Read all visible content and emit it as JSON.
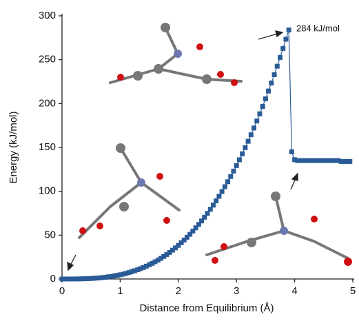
{
  "chart_data": {
    "type": "scatter",
    "x_label": "Distance from Equilibrium (Å)",
    "y_label": "Energy (kJ/mol)",
    "annotation": "284 kJ/mol",
    "xlim": [
      0,
      5
    ],
    "xticks": [
      0,
      1,
      2,
      3,
      4,
      5
    ],
    "ylim": [
      0,
      300
    ],
    "yticks": [
      0,
      50,
      100,
      150,
      200,
      250,
      300
    ],
    "x": [
      0,
      0.05,
      0.1,
      0.15,
      0.2,
      0.25,
      0.3,
      0.35,
      0.4,
      0.45,
      0.5,
      0.55,
      0.6,
      0.65,
      0.7,
      0.75,
      0.8,
      0.85,
      0.9,
      0.95,
      1.0,
      1.05,
      1.1,
      1.15,
      1.2,
      1.25,
      1.3,
      1.35,
      1.4,
      1.45,
      1.5,
      1.55,
      1.6,
      1.65,
      1.7,
      1.75,
      1.8,
      1.85,
      1.9,
      1.95,
      2.0,
      2.05,
      2.1,
      2.15,
      2.2,
      2.25,
      2.3,
      2.35,
      2.4,
      2.45,
      2.5,
      2.55,
      2.6,
      2.65,
      2.7,
      2.75,
      2.8,
      2.85,
      2.9,
      2.95,
      3.0,
      3.05,
      3.1,
      3.15,
      3.2,
      3.25,
      3.3,
      3.35,
      3.4,
      3.45,
      3.5,
      3.55,
      3.6,
      3.65,
      3.7,
      3.75,
      3.8,
      3.85,
      3.9,
      3.95,
      4.0,
      4.05,
      4.1,
      4.15,
      4.2,
      4.25,
      4.3,
      4.35,
      4.4,
      4.45,
      4.5,
      4.55,
      4.6,
      4.65,
      4.7,
      4.75,
      4.8,
      4.85,
      4.9,
      4.95
    ],
    "series": [
      {
        "color": "#2a5b97",
        "values": [
          0,
          0,
          0,
          0,
          0.04,
          0.07,
          0.13,
          0.21,
          0.31,
          0.44,
          0.6,
          0.8,
          1.0,
          1.3,
          1.6,
          2.0,
          2.5,
          2.9,
          3.5,
          4.1,
          4.8,
          5.5,
          6.4,
          7.3,
          8.3,
          9.4,
          10.5,
          11.8,
          13.1,
          14.6,
          16.2,
          17.8,
          19.6,
          21.5,
          23.5,
          25.7,
          27.9,
          30.3,
          32.9,
          35.5,
          38.3,
          41.3,
          44.4,
          47.6,
          51.0,
          54.6,
          58.3,
          62.2,
          66.2,
          70.4,
          74.8,
          79.4,
          84.2,
          89.1,
          94.3,
          99.6,
          105.2,
          110.9,
          116.8,
          123.0,
          129.3,
          135.9,
          142.7,
          149.7,
          157.0,
          164.4,
          172.1,
          180.1,
          188.3,
          196.7,
          205.4,
          214.3,
          223.5,
          232.9,
          242.6,
          252.6,
          262.8,
          273.4,
          284,
          145,
          136,
          135,
          135,
          135,
          135,
          135,
          135,
          135,
          135,
          135,
          135,
          135,
          135,
          135,
          135,
          135,
          134,
          134,
          134,
          134
        ]
      }
    ]
  }
}
